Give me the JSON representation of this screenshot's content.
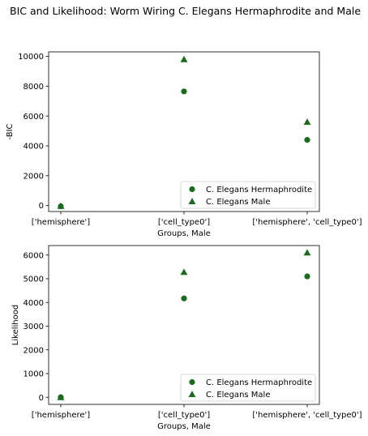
{
  "figure": {
    "title": "BIC and Likelihood: Worm Wiring C. Elegans Hermaphrodite and Male"
  },
  "colors": {
    "marker": "#1a6b1e",
    "axis": "#000000",
    "legend_border": "#cccccc",
    "background": "#ffffff"
  },
  "chart_data": [
    {
      "type": "scatter",
      "categories": [
        "['hemisphere']",
        "['cell_type0']",
        "['hemisphere', 'cell_type0']"
      ],
      "xlabel": "Groups, Male",
      "ylabel": "-BIC",
      "ylim": [
        -400,
        10300
      ],
      "yticks": [
        0,
        2000,
        4000,
        6000,
        8000,
        10000
      ],
      "grid": false,
      "legend_position": "lower-right",
      "series": [
        {
          "name": "C. Elegans Hermaphrodite",
          "marker": "circle",
          "values": [
            -50,
            7650,
            4400
          ]
        },
        {
          "name": "C. Elegans Male",
          "marker": "triangle",
          "values": [
            -30,
            9800,
            5600
          ]
        }
      ]
    },
    {
      "type": "scatter",
      "categories": [
        "['hemisphere']",
        "['cell_type0']",
        "['hemisphere', 'cell_type0']"
      ],
      "xlabel": "Groups, Male",
      "ylabel": "Likelihood",
      "ylim": [
        -300,
        6400
      ],
      "yticks": [
        0,
        1000,
        2000,
        3000,
        4000,
        5000,
        6000
      ],
      "grid": false,
      "legend_position": "lower-right",
      "series": [
        {
          "name": "C. Elegans Hermaphrodite",
          "marker": "circle",
          "values": [
            0,
            4170,
            5100
          ]
        },
        {
          "name": "C. Elegans Male",
          "marker": "triangle",
          "values": [
            0,
            5280,
            6100
          ]
        }
      ]
    }
  ]
}
